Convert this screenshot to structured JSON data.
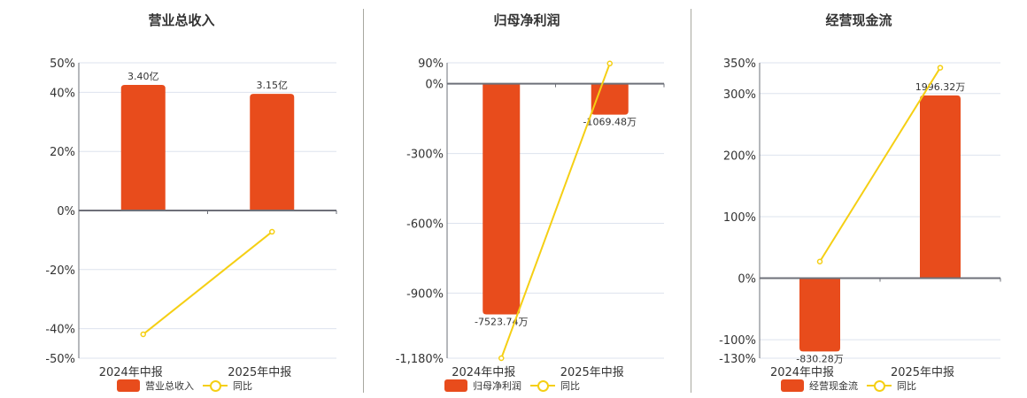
{
  "colors": {
    "bar": "#e84c1c",
    "line": "#f5cf14",
    "grid": "#dde3ee",
    "axis": "#6e7079"
  },
  "legend_line_label": "同比",
  "chart_data": [
    {
      "type": "bar+line",
      "title": "营业总收入",
      "categories": [
        "2024年中报",
        "2025年中报"
      ],
      "series": [
        {
          "name": "营业总收入",
          "type": "bar",
          "values": [
            42.5,
            39.5
          ],
          "labels": [
            "3.40亿",
            "3.15亿"
          ]
        },
        {
          "name": "同比",
          "type": "line",
          "values": [
            -41.9,
            -7.2
          ]
        }
      ],
      "yticks": [
        "50%",
        "40%",
        "20%",
        "0%",
        "-20%",
        "-40%",
        "-50%"
      ],
      "ytick_values": [
        50,
        40,
        20,
        0,
        -20,
        -40,
        -50
      ],
      "ylim": [
        -50,
        50
      ],
      "grid": true,
      "legend_position": "bottom"
    },
    {
      "type": "bar+line",
      "title": "归母净利润",
      "categories": [
        "2024年中报",
        "2025年中报"
      ],
      "series": [
        {
          "name": "归母净利润",
          "type": "bar",
          "values": [
            -992,
            -133
          ],
          "labels": [
            "-7523.74万",
            "-1069.48万"
          ]
        },
        {
          "name": "同比",
          "type": "line",
          "values": [
            -1180,
            87
          ]
        }
      ],
      "yticks": [
        "90%",
        "0%",
        "-300%",
        "-600%",
        "-900%",
        "-1,180%"
      ],
      "ytick_values": [
        90,
        0,
        -300,
        -600,
        -900,
        -1180
      ],
      "ylim": [
        -1180,
        90
      ],
      "grid": true,
      "legend_position": "bottom"
    },
    {
      "type": "bar+line",
      "title": "经营现金流",
      "categories": [
        "2024年中报",
        "2025年中报"
      ],
      "series": [
        {
          "name": "经营现金流",
          "type": "bar",
          "values": [
            -119,
            297
          ],
          "labels": [
            "-830.28万",
            "1996.32万"
          ]
        },
        {
          "name": "同比",
          "type": "line",
          "values": [
            27,
            342
          ]
        }
      ],
      "yticks": [
        "350%",
        "300%",
        "200%",
        "100%",
        "0%",
        "-100%",
        "-130%"
      ],
      "ytick_values": [
        350,
        300,
        200,
        100,
        0,
        -100,
        -130
      ],
      "ylim": [
        -130,
        350
      ],
      "grid": true,
      "legend_position": "bottom"
    }
  ]
}
